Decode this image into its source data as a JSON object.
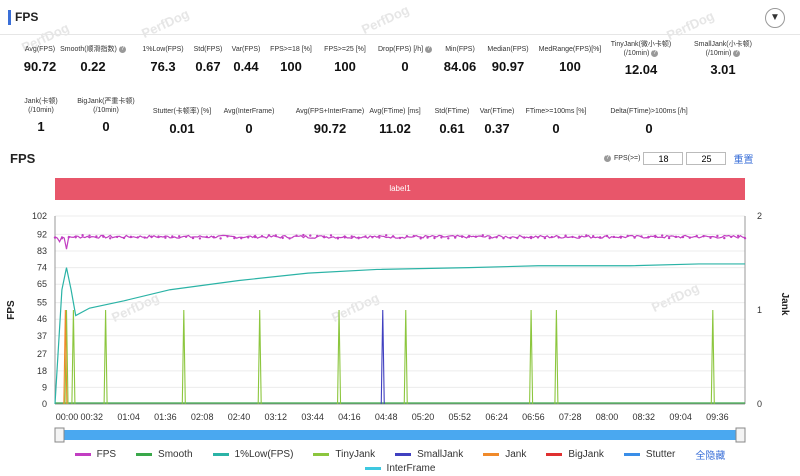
{
  "header": {
    "title": "FPS"
  },
  "watermark": "PerfDog",
  "stats_row1": [
    {
      "label": "Avg(FPS)",
      "value": "90.72",
      "help": false
    },
    {
      "label": "Smooth(顺滑指数)",
      "value": "0.22",
      "help": true
    },
    {
      "label": "1%Low(FPS)",
      "value": "76.3",
      "help": false
    },
    {
      "label": "Std(FPS)",
      "value": "0.67",
      "help": false
    },
    {
      "label": "Var(FPS)",
      "value": "0.44",
      "help": false
    },
    {
      "label": "FPS>=18 [%]",
      "value": "100",
      "help": false
    },
    {
      "label": "FPS>=25 [%]",
      "value": "100",
      "help": false
    },
    {
      "label": "Drop(FPS) [/h]",
      "value": "0",
      "help": true
    },
    {
      "label": "Min(FPS)",
      "value": "84.06",
      "help": false
    },
    {
      "label": "Median(FPS)",
      "value": "90.97",
      "help": false
    },
    {
      "label": "MedRange(FPS)[%]",
      "value": "100",
      "help": false
    },
    {
      "label": "TinyJank(微小卡顿)",
      "label2": "(/10min)",
      "value": "12.04",
      "help": true
    },
    {
      "label": "SmallJank(小卡顿)",
      "label2": "(/10min)",
      "value": "3.01",
      "help": true
    }
  ],
  "stats_row2": [
    {
      "label": "Jank(卡顿)",
      "label2": "(/10min)",
      "value": "1",
      "help": false
    },
    {
      "label": "BigJank(严重卡顿)",
      "label2": "(/10min)",
      "value": "0",
      "help": false
    },
    {
      "label": "Stutter(卡顿率) [%]",
      "value": "0.01",
      "help": false
    },
    {
      "label": "Avg(InterFrame)",
      "value": "0",
      "help": false
    },
    {
      "label": "Avg(FPS+InterFrame)",
      "value": "90.72",
      "help": false
    },
    {
      "label": "Avg(FTime) [ms]",
      "value": "11.02",
      "help": false
    },
    {
      "label": "Std(FTime)",
      "value": "0.61",
      "help": false
    },
    {
      "label": "Var(FTime)",
      "value": "0.37",
      "help": false
    },
    {
      "label": "FTime>=100ms [%]",
      "value": "0",
      "help": false
    },
    {
      "label": "Delta(FTime)>100ms [/h]",
      "value": "0",
      "help": false
    }
  ],
  "chart_controls": {
    "title": "FPS",
    "fps_gte_label": "FPS(>=)",
    "threshold1": "18",
    "threshold2": "25",
    "reset_label": "重置",
    "band_label": "label1"
  },
  "chart_data": {
    "type": "line",
    "ylabel": "FPS",
    "ylabel_right": "Jank",
    "y_ticks": [
      "102",
      "92",
      "83",
      "74",
      "65",
      "55",
      "46",
      "37",
      "27",
      "18",
      "9",
      "0"
    ],
    "y_right_ticks": [
      "2",
      "1",
      "0"
    ],
    "x_ticks": [
      "00:00",
      "00:32",
      "01:04",
      "01:36",
      "02:08",
      "02:40",
      "03:12",
      "03:44",
      "04:16",
      "04:48",
      "05:20",
      "05:52",
      "06:24",
      "06:56",
      "07:28",
      "08:00",
      "08:32",
      "09:04",
      "09:36"
    ],
    "ylim": [
      0,
      102
    ],
    "ylim_right": [
      0,
      2
    ],
    "duration_s": 600,
    "series": [
      {
        "name": "FPS",
        "color": "#c23ec2",
        "avg": 90.72,
        "min": 84.06
      },
      {
        "name": "Smooth",
        "color": "#3aa84a"
      },
      {
        "name": "1%Low(FPS)",
        "color": "#2bb3a6",
        "x": [
          0,
          6,
          10,
          14,
          18,
          30,
          60,
          100,
          160,
          220,
          280,
          360,
          420,
          500,
          560,
          600
        ],
        "values": [
          0,
          62,
          74,
          62,
          48,
          52,
          56,
          62,
          67,
          71,
          73,
          74,
          75,
          75,
          76,
          76
        ]
      },
      {
        "name": "TinyJank",
        "color": "#8cc63e",
        "spikes_s": [
          10,
          16,
          44,
          112,
          178,
          247,
          305,
          414,
          436,
          572
        ]
      },
      {
        "name": "SmallJank",
        "color": "#4040c0",
        "spikes_s": [
          285
        ]
      },
      {
        "name": "Jank",
        "color": "#f08a2a",
        "spikes_s": [
          9
        ]
      },
      {
        "name": "BigJank",
        "color": "#e03030"
      },
      {
        "name": "Stutter",
        "color": "#3a8ee8"
      },
      {
        "name": "InterFrame",
        "color": "#3ec8e0"
      }
    ]
  },
  "legend": {
    "items": [
      {
        "name": "FPS",
        "color": "#c23ec2"
      },
      {
        "name": "Smooth",
        "color": "#3aa84a"
      },
      {
        "name": "1%Low(FPS)",
        "color": "#2bb3a6"
      },
      {
        "name": "TinyJank",
        "color": "#8cc63e"
      },
      {
        "name": "SmallJank",
        "color": "#4040c0"
      },
      {
        "name": "Jank",
        "color": "#f08a2a"
      },
      {
        "name": "BigJank",
        "color": "#e03030"
      },
      {
        "name": "Stutter",
        "color": "#3a8ee8"
      }
    ],
    "hide_all": "全隐藏",
    "row2": {
      "name": "InterFrame",
      "color": "#3ec8e0"
    }
  }
}
